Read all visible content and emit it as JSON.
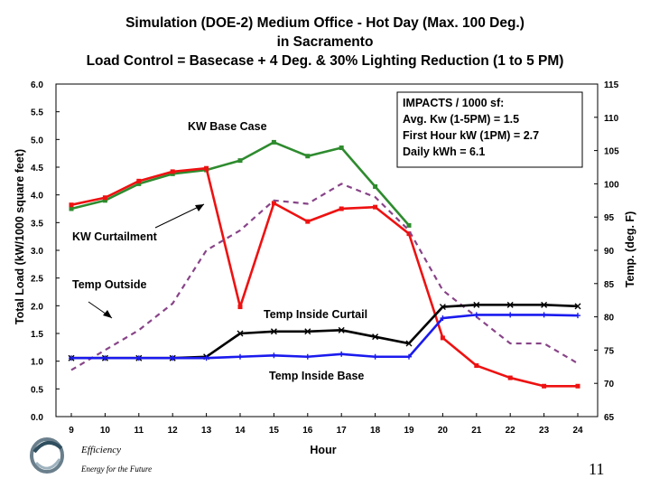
{
  "title": {
    "line1": "Simulation (DOE-2) Medium Office - Hot Day (Max. 100 Deg.)",
    "line2": "in Sacramento",
    "line3": "Load Control = Basecase + 4 Deg. & 30% Lighting Reduction (1 to 5 PM)"
  },
  "chart_data": {
    "type": "line",
    "title": "Simulation (DOE-2) Medium Office - Hot Day (Max. 100 Deg.) in Sacramento",
    "xlabel": "Hour",
    "ylabel": "Total Load (kW/1000 square feet)",
    "y2label": "Temp. (deg. F)",
    "x": [
      9,
      10,
      11,
      12,
      13,
      14,
      15,
      16,
      17,
      18,
      19,
      20,
      21,
      22,
      23,
      24
    ],
    "x_tick_labels": [
      "9",
      "10",
      "11",
      "12",
      "13",
      "14",
      "15",
      "16",
      "17",
      "18",
      "19",
      "20",
      "21",
      "22",
      "23",
      "24"
    ],
    "ylim": [
      0,
      6
    ],
    "y_tick_labels": [
      "0.0",
      "0.5",
      "1.0",
      "1.5",
      "2.0",
      "2.5",
      "3.0",
      "3.5",
      "4.0",
      "4.5",
      "5.0",
      "5.5",
      "6.0"
    ],
    "y2lim": [
      65,
      115
    ],
    "y2_tick_labels": [
      "65",
      "70",
      "75",
      "80",
      "85",
      "90",
      "95",
      "100",
      "105",
      "110",
      "115"
    ],
    "series": [
      {
        "name": "KW Base Case",
        "axis": "left",
        "color": "#2e8b2e",
        "marker": "square",
        "values": [
          3.75,
          3.9,
          4.2,
          4.38,
          4.45,
          4.62,
          4.95,
          4.7,
          4.85,
          4.15,
          3.45,
          null,
          null,
          null,
          null,
          null
        ]
      },
      {
        "name": "KW Curtailment",
        "axis": "left",
        "color": "#ee1111",
        "marker": "square",
        "values": [
          3.82,
          3.95,
          4.25,
          4.42,
          4.48,
          1.98,
          3.85,
          3.52,
          3.75,
          3.78,
          3.3,
          1.42,
          0.92,
          0.7,
          0.55,
          0.55
        ]
      },
      {
        "name": "Temp Outside",
        "axis": "right",
        "color": "#884488",
        "dashed": true,
        "values": [
          72,
          75,
          78,
          82,
          90,
          93,
          97.5,
          97,
          100,
          98,
          93,
          84,
          80,
          76,
          76,
          73
        ]
      },
      {
        "name": "Temp Inside Curtail",
        "axis": "right",
        "color": "#000000",
        "marker": "x",
        "values": [
          73.8,
          73.8,
          73.8,
          73.8,
          74,
          77.5,
          77.8,
          77.8,
          78,
          77,
          76,
          81.5,
          81.8,
          81.8,
          81.8,
          81.6
        ]
      },
      {
        "name": "Temp Inside Base",
        "axis": "right",
        "color": "#1a1aee",
        "marker": "plus",
        "values": [
          73.8,
          73.8,
          73.8,
          73.8,
          73.8,
          74,
          74.2,
          74,
          74.4,
          74,
          74,
          79.8,
          80.3,
          80.3,
          80.3,
          80.2
        ]
      }
    ],
    "annotations": {
      "kw_base_case": "KW Base Case",
      "kw_curtailment": "KW Curtailment",
      "temp_outside": "Temp Outside",
      "temp_inside_curtail": "Temp Inside Curtail",
      "temp_inside_base": "Temp Inside Base"
    },
    "impacts": [
      "IMPACTS / 1000 sf:",
      "Avg. Kw (1-5PM) = 1.5",
      "First Hour kW (1PM) = 2.7",
      "Daily kWh = 6.1"
    ]
  },
  "footer": {
    "logo_name": "Efficiency",
    "logo_tagline": "Energy for the Future",
    "page_number": "11"
  }
}
